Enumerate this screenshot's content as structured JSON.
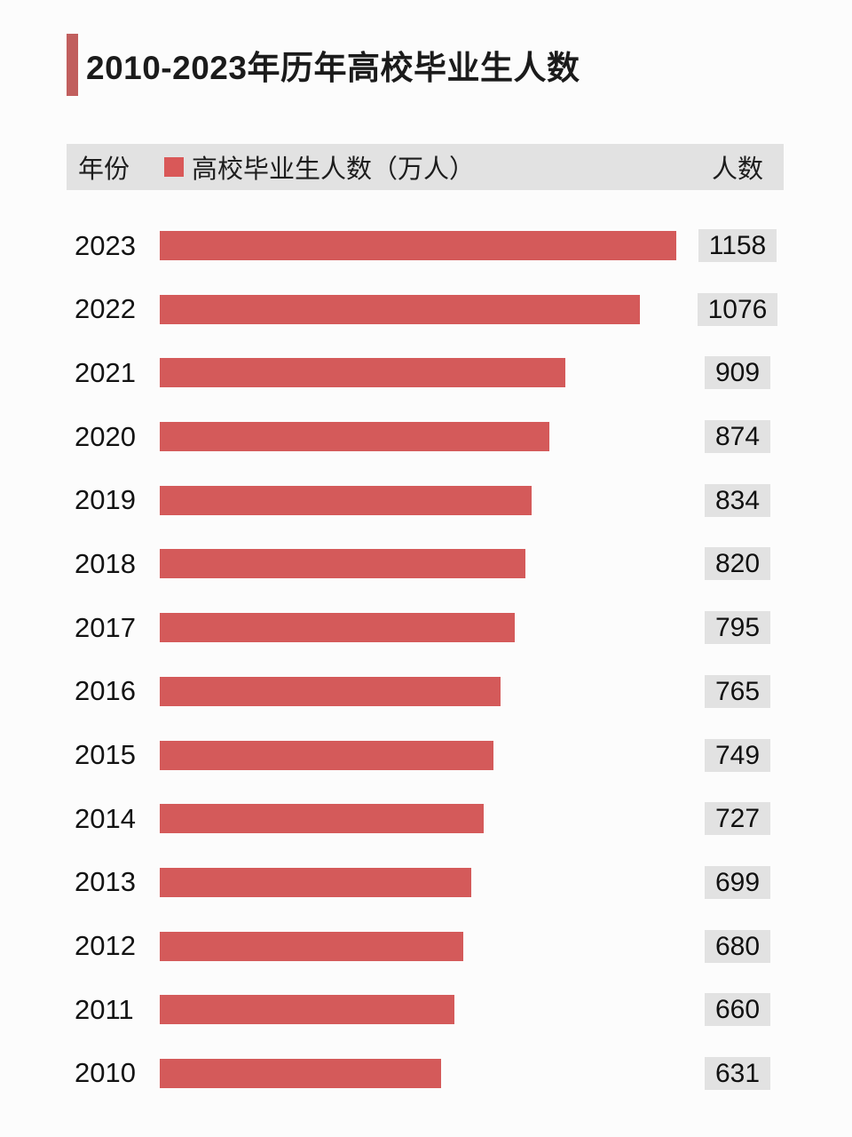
{
  "page": {
    "background": "#fcfcfc"
  },
  "title": {
    "text": "2010-2023年历年高校毕业生人数",
    "accent_color": "#c15f5e"
  },
  "header": {
    "year_label": "年份",
    "series_label": "高校毕业生人数（万人）",
    "count_label": "人数",
    "background": "#e2e2e2",
    "legend_color": "#d95858"
  },
  "colors": {
    "bar": "#d45a5a",
    "value_badge_bg": "#e2e2e2"
  },
  "chart_data": {
    "type": "bar",
    "orientation": "horizontal",
    "title": "2010-2023年历年高校毕业生人数",
    "series_name": "高校毕业生人数（万人）",
    "categories": [
      "2023",
      "2022",
      "2021",
      "2020",
      "2019",
      "2018",
      "2017",
      "2016",
      "2015",
      "2014",
      "2013",
      "2012",
      "2011",
      "2010"
    ],
    "values": [
      1158,
      1076,
      909,
      874,
      834,
      820,
      795,
      765,
      749,
      727,
      699,
      680,
      660,
      631
    ],
    "xlabel": "",
    "ylabel": "年份",
    "xlim": [
      0,
      1158
    ],
    "grid": false,
    "legend_position": "top",
    "value_labels": "right"
  }
}
